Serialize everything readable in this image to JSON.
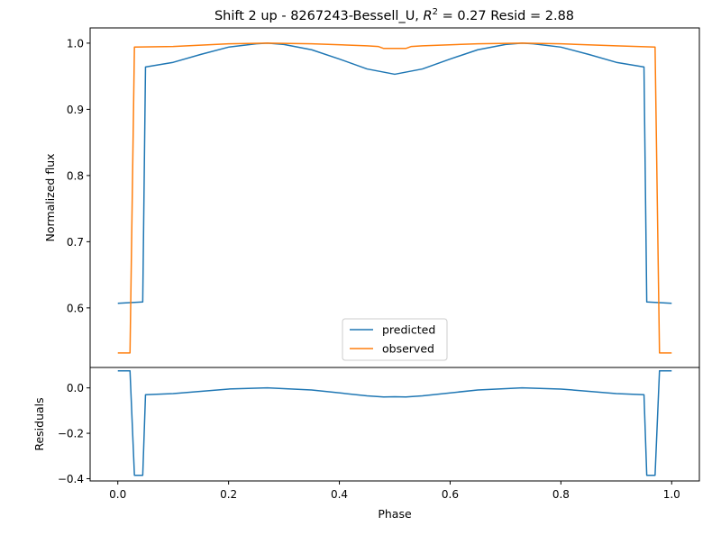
{
  "chart_data": [
    {
      "type": "line",
      "title_prefix": "Shift 2 up - 8267243-Bessell_U, ",
      "title_r": "R",
      "title_sup": "2",
      "title_suffix": " = 0.27 Resid = 2.88",
      "xlabel": "",
      "ylabel": "Normalized flux",
      "xlim": [
        -0.05,
        1.05
      ],
      "ylim": [
        0.51,
        1.023
      ],
      "yticks": [
        0.6,
        0.7,
        0.8,
        0.9,
        1.0
      ],
      "ytick_labels": [
        "0.6",
        "0.7",
        "0.8",
        "0.9",
        "1.0"
      ],
      "legend": {
        "placement": "lower-center",
        "entries": [
          "predicted",
          "observed"
        ]
      },
      "series": [
        {
          "name": "predicted",
          "color": "#1f77b4",
          "x": [
            0.0,
            0.045,
            0.05,
            0.1,
            0.15,
            0.2,
            0.25,
            0.27,
            0.3,
            0.35,
            0.4,
            0.45,
            0.5,
            0.55,
            0.6,
            0.65,
            0.7,
            0.73,
            0.75,
            0.8,
            0.85,
            0.9,
            0.95,
            0.955,
            1.0
          ],
          "y": [
            0.607,
            0.609,
            0.964,
            0.971,
            0.983,
            0.994,
            0.999,
            1.0,
            0.998,
            0.99,
            0.976,
            0.961,
            0.953,
            0.961,
            0.976,
            0.99,
            0.998,
            1.0,
            0.999,
            0.994,
            0.983,
            0.971,
            0.964,
            0.609,
            0.607
          ]
        },
        {
          "name": "observed",
          "color": "#ff7f0e",
          "x": [
            0.0,
            0.022,
            0.03,
            0.1,
            0.2,
            0.27,
            0.35,
            0.45,
            0.47,
            0.48,
            0.52,
            0.53,
            0.55,
            0.65,
            0.73,
            0.8,
            0.9,
            0.97,
            0.978,
            1.0
          ],
          "y": [
            0.532,
            0.532,
            0.994,
            0.995,
            0.999,
            1.0,
            0.999,
            0.996,
            0.995,
            0.992,
            0.992,
            0.995,
            0.996,
            0.999,
            1.0,
            0.999,
            0.996,
            0.994,
            0.532,
            0.532
          ]
        }
      ]
    },
    {
      "type": "line",
      "xlabel": "Phase",
      "ylabel": "Residuals",
      "xlim": [
        -0.05,
        1.05
      ],
      "ylim": [
        -0.41,
        0.09
      ],
      "xticks": [
        0.0,
        0.2,
        0.4,
        0.6,
        0.8,
        1.0
      ],
      "xtick_labels": [
        "0.0",
        "0.2",
        "0.4",
        "0.6",
        "0.8",
        "1.0"
      ],
      "yticks": [
        0.0,
        -0.2,
        -0.4
      ],
      "ytick_labels": [
        "0.0",
        "−0.2",
        "−0.4"
      ],
      "series": [
        {
          "color": "#1f77b4",
          "x": [
            0.0,
            0.022,
            0.03,
            0.045,
            0.05,
            0.1,
            0.2,
            0.27,
            0.35,
            0.45,
            0.48,
            0.5,
            0.52,
            0.55,
            0.65,
            0.73,
            0.8,
            0.9,
            0.95,
            0.955,
            0.97,
            0.978,
            1.0
          ],
          "y": [
            0.075,
            0.075,
            -0.385,
            -0.385,
            -0.03,
            -0.025,
            -0.005,
            0.0,
            -0.009,
            -0.035,
            -0.04,
            -0.039,
            -0.04,
            -0.035,
            -0.009,
            0.0,
            -0.005,
            -0.025,
            -0.03,
            -0.385,
            -0.385,
            0.075,
            0.075
          ]
        }
      ]
    }
  ]
}
